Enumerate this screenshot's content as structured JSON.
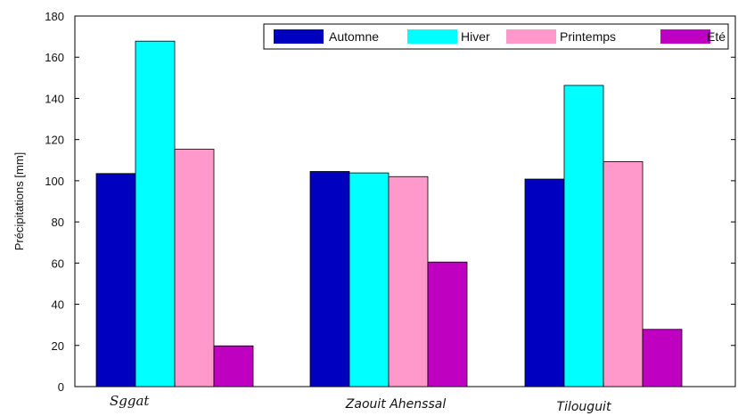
{
  "chart_data": {
    "type": "bar",
    "categories": [
      "Sggat",
      "Zaouit Ahenssal",
      "Tilouguit"
    ],
    "series": [
      {
        "name": "Automne",
        "color": "#0000c0",
        "values": [
          103.5,
          104.5,
          100.8
        ]
      },
      {
        "name": "Hiver",
        "color": "#00ffff",
        "values": [
          167.8,
          103.8,
          146.3
        ]
      },
      {
        "name": "Printemps",
        "color": "#ff99cc",
        "values": [
          115.3,
          102.0,
          109.3
        ]
      },
      {
        "name": "Eté",
        "color": "#c000c0",
        "values": [
          19.8,
          60.5,
          27.8
        ]
      }
    ],
    "ylabel": "Précipitations [mm]",
    "ylim": [
      0,
      180
    ],
    "yticks": [
      0,
      20,
      40,
      60,
      80,
      100,
      120,
      140,
      160,
      180
    ],
    "grid": false,
    "legend_position": "top-right"
  }
}
